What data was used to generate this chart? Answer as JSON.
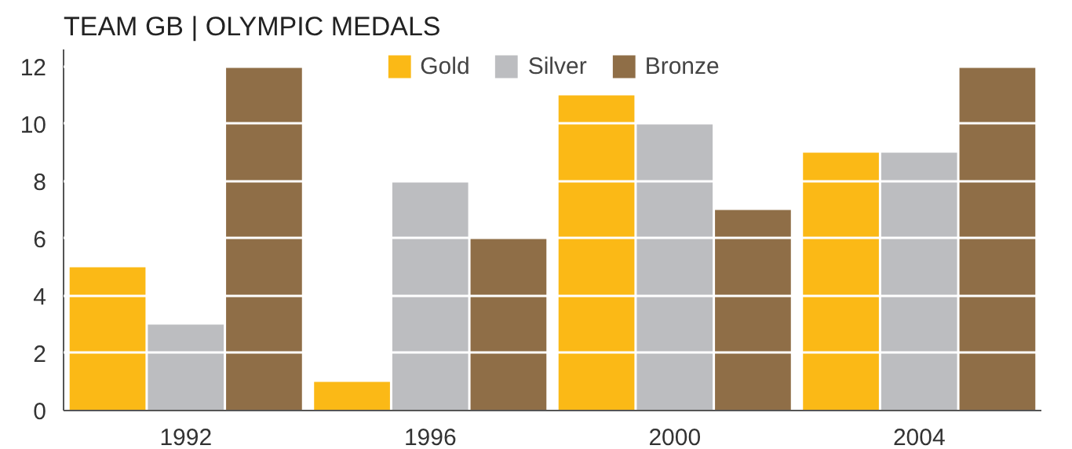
{
  "chart_data": {
    "type": "bar",
    "title": "TEAM GB | OLYMPIC MEDALS",
    "categories": [
      "1992",
      "1996",
      "2000",
      "2004"
    ],
    "series": [
      {
        "name": "Gold",
        "color": "#fbb916",
        "values": [
          5,
          1,
          11,
          9
        ]
      },
      {
        "name": "Silver",
        "color": "#bcbdc0",
        "values": [
          3,
          8,
          10,
          9
        ]
      },
      {
        "name": "Bronze",
        "color": "#8f6e47",
        "values": [
          12,
          6,
          7,
          12
        ]
      }
    ],
    "ylim": [
      0,
      12.6
    ],
    "yticks": [
      0,
      2,
      4,
      6,
      8,
      10,
      12
    ],
    "grid": "y",
    "legend": "top"
  }
}
